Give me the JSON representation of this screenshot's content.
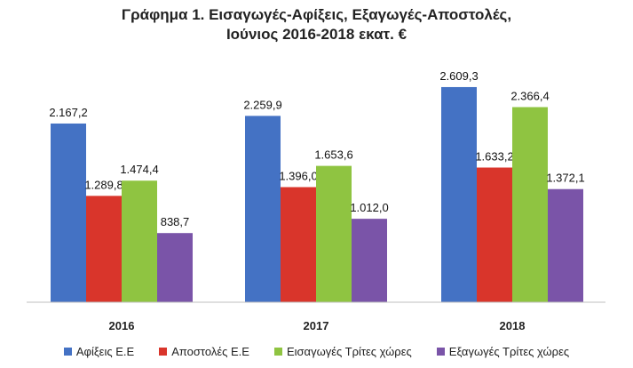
{
  "title_line1": "Γράφημα 1. Εισαγωγές-Αφίξεις, Εξαγωγές-Αποστολές,",
  "title_line2": "Ιούνιος 2016-2018 εκατ. €",
  "chart_data": {
    "type": "bar",
    "categories": [
      "2016",
      "2017",
      "2018"
    ],
    "series": [
      {
        "name": "Αφίξεις Ε.Ε",
        "color": "#4472c4",
        "values": [
          2167.2,
          2259.9,
          2609.3
        ],
        "labels": [
          "2.167,2",
          "2.259,9",
          "2.609,3"
        ]
      },
      {
        "name": "Αποστολές  Ε.Ε",
        "color": "#d9352b",
        "values": [
          1289.8,
          1396.0,
          1633.2
        ],
        "labels": [
          "1.289,8",
          "1.396,0",
          "1.633,2"
        ]
      },
      {
        "name": "Εισαγωγές Τρίτες χώρες",
        "color": "#8fc441",
        "values": [
          1474.4,
          1653.6,
          2366.4
        ],
        "labels": [
          "1.474,4",
          "1.653,6",
          "2.366,4"
        ]
      },
      {
        "name": "Εξαγωγές Τρίτες χώρες",
        "color": "#7a54a8",
        "values": [
          838.7,
          1012.0,
          1372.1
        ],
        "labels": [
          "838,7",
          "1.012,0",
          "1.372,1"
        ]
      }
    ],
    "ylim": [
      0,
      2900
    ],
    "grid": false,
    "legend": "bottom"
  }
}
